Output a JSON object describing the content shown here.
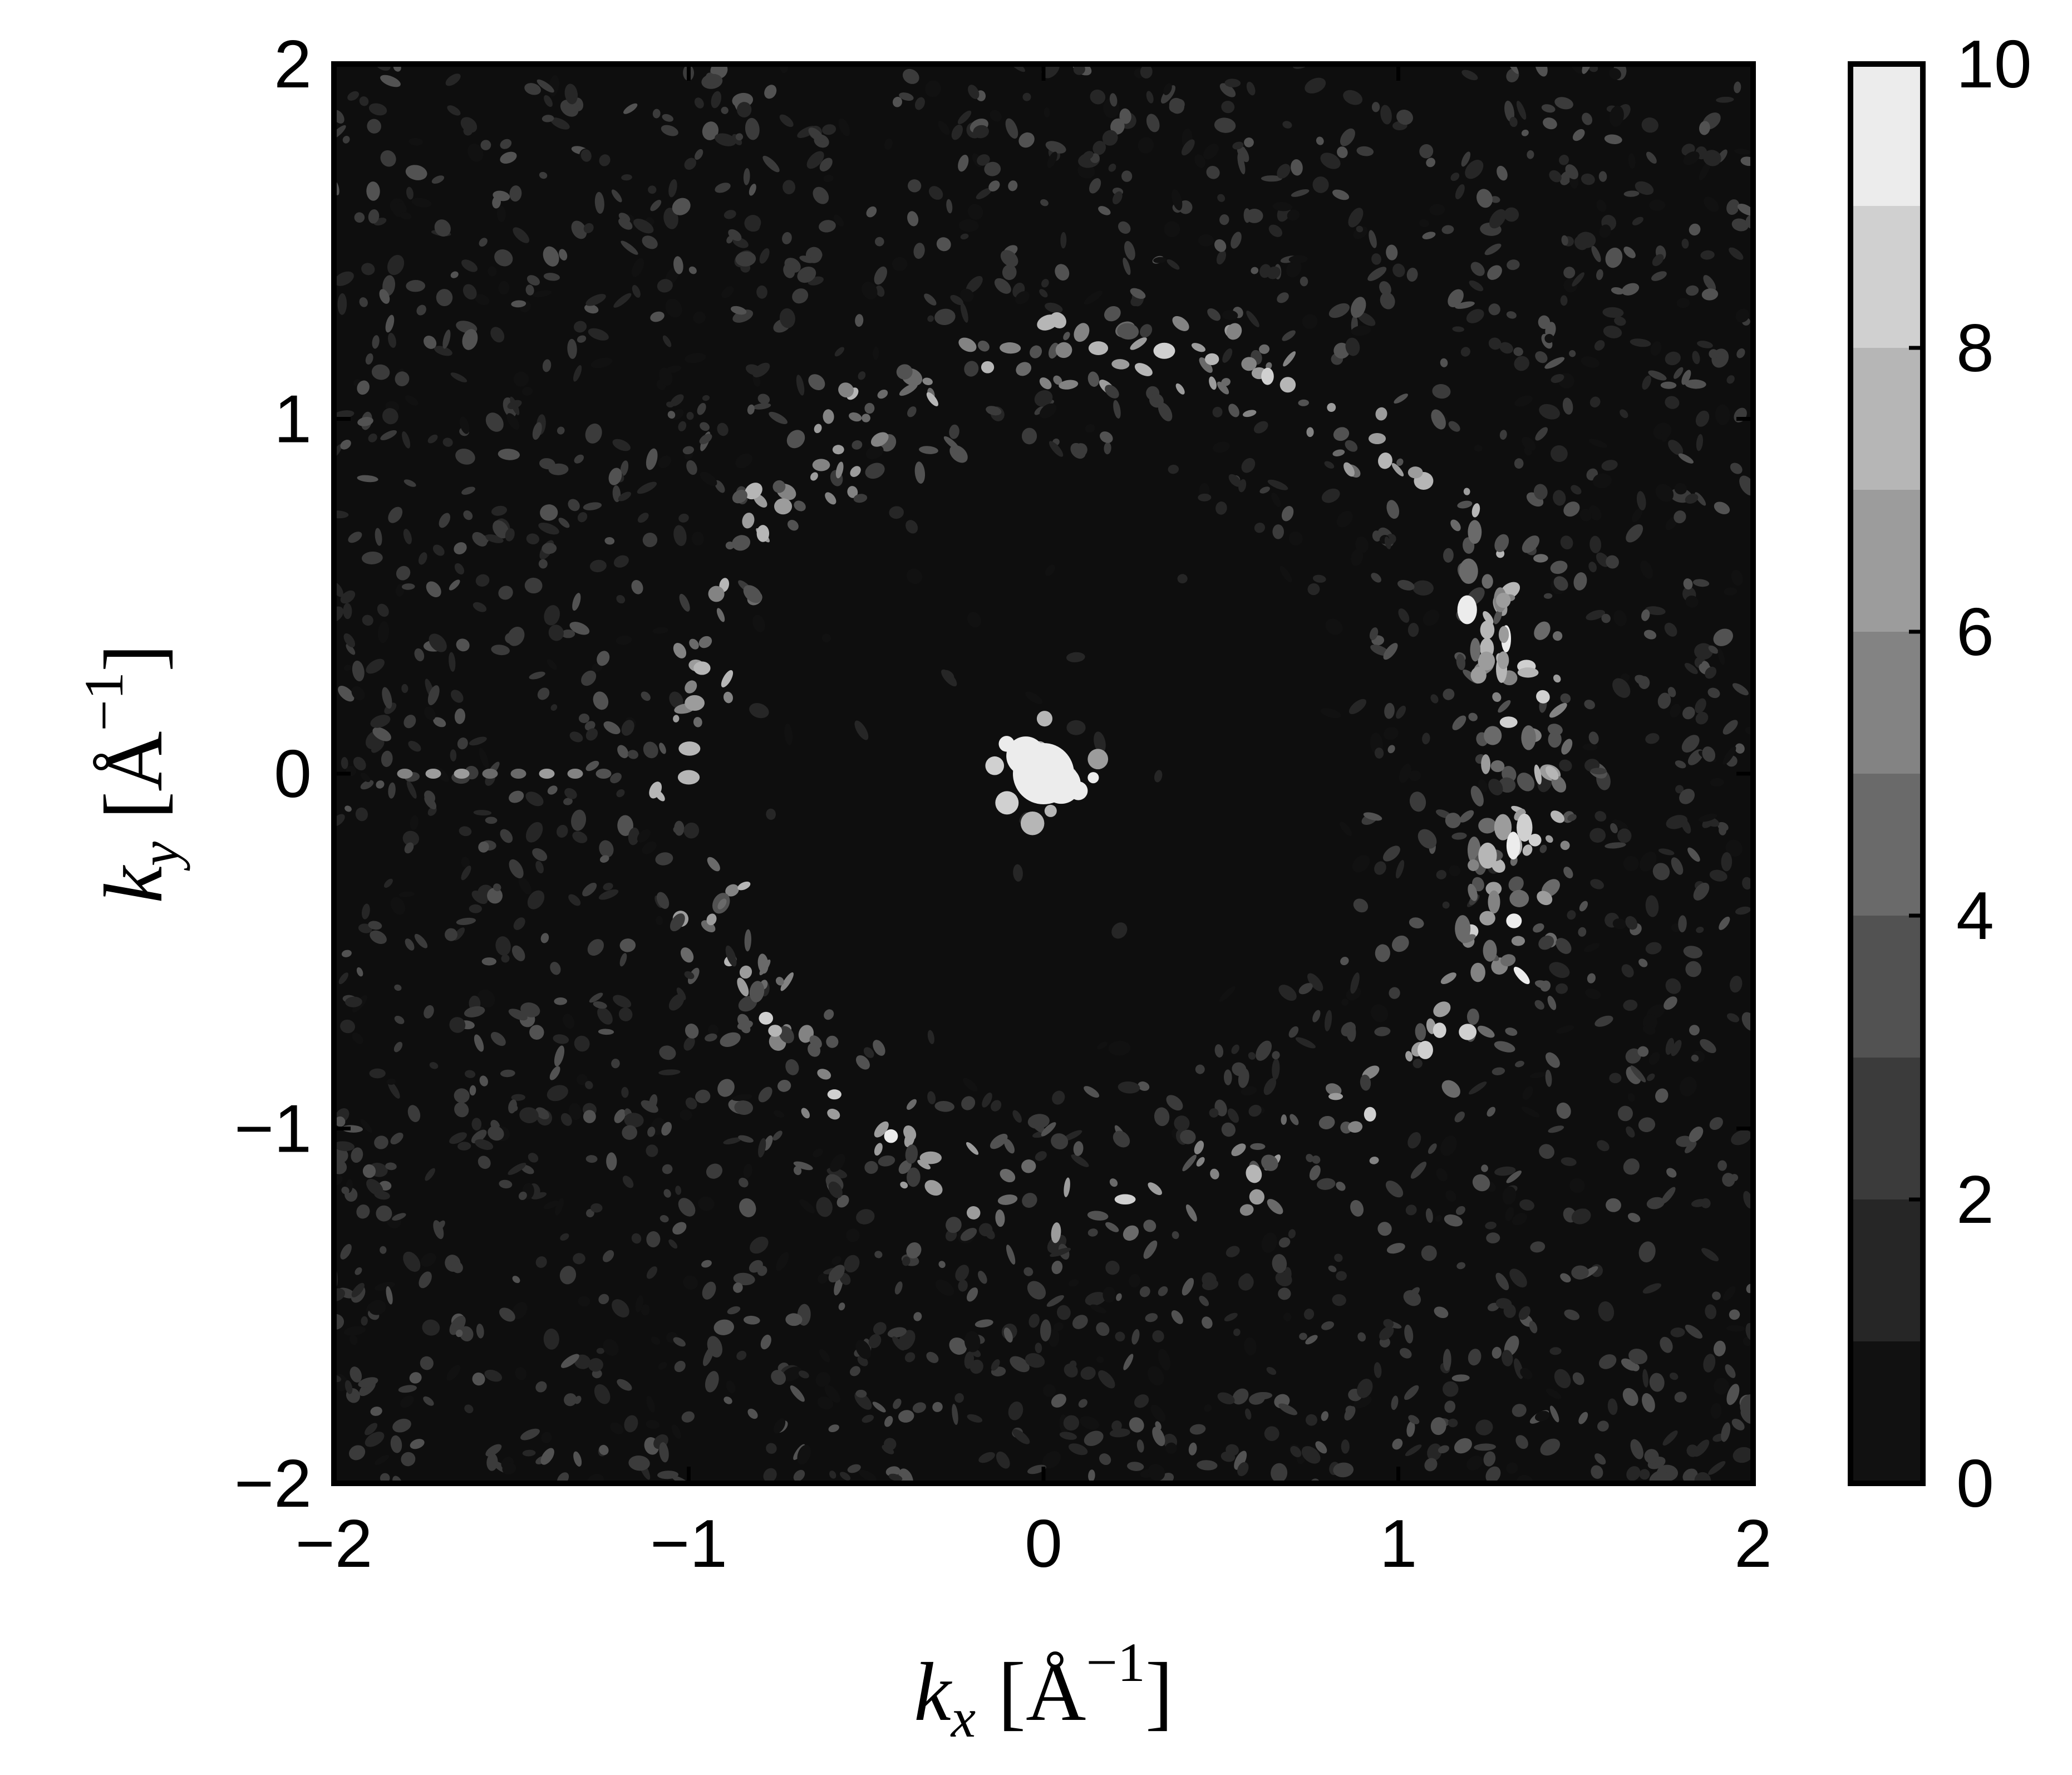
{
  "chart_data": {
    "type": "heatmap",
    "title": "",
    "xlabel": {
      "var": "k",
      "sub": "x",
      "unit_open": "[",
      "unit": "Å",
      "sup": "−1",
      "unit_close": "]"
    },
    "ylabel": {
      "var": "k",
      "sub": "y",
      "unit_open": "[",
      "unit": "Å",
      "sup": "−1",
      "unit_close": "]"
    },
    "xlim": [
      -2,
      2
    ],
    "ylim": [
      -2,
      2
    ],
    "x_ticks": [
      -2,
      -1,
      0,
      1,
      2
    ],
    "y_ticks": [
      -2,
      -1,
      0,
      1,
      2
    ],
    "x_tick_labels": [
      "−2",
      "−1",
      "0",
      "1",
      "2"
    ],
    "y_tick_labels": [
      "−2",
      "−1",
      "0",
      "1",
      "2"
    ],
    "colorbar": {
      "min": 0,
      "max": 10,
      "levels": 10,
      "ticks": [
        0,
        2,
        4,
        6,
        8,
        10
      ],
      "tick_labels": [
        "0",
        "2",
        "4",
        "6",
        "8",
        "10"
      ],
      "colormap": "gray",
      "colors": [
        "#111111",
        "#262626",
        "#3b3b3b",
        "#525252",
        "#6a6a6a",
        "#838383",
        "#9c9c9c",
        "#b6b6b6",
        "#d0d0d0",
        "#ececec"
      ]
    },
    "background_color": "#0e0e0e",
    "features": [
      {
        "name": "central-peak",
        "kx": 0.0,
        "ky": 0.0,
        "radius": 0.17,
        "intensity": 10
      },
      {
        "name": "outer-ring",
        "center_kx": 0.2,
        "center_ky": 0.0,
        "radius": 1.2,
        "intensity": 5
      },
      {
        "name": "right-arc",
        "kx": 1.3,
        "ky": 0.0,
        "span_ky": [
          -0.8,
          0.8
        ],
        "intensity": 6
      },
      {
        "name": "left-streak",
        "kx": -1.5,
        "ky": 0.0,
        "intensity": 4
      },
      {
        "name": "speckle-noise",
        "inner_radius": 0.9,
        "intensity": 3
      }
    ]
  }
}
